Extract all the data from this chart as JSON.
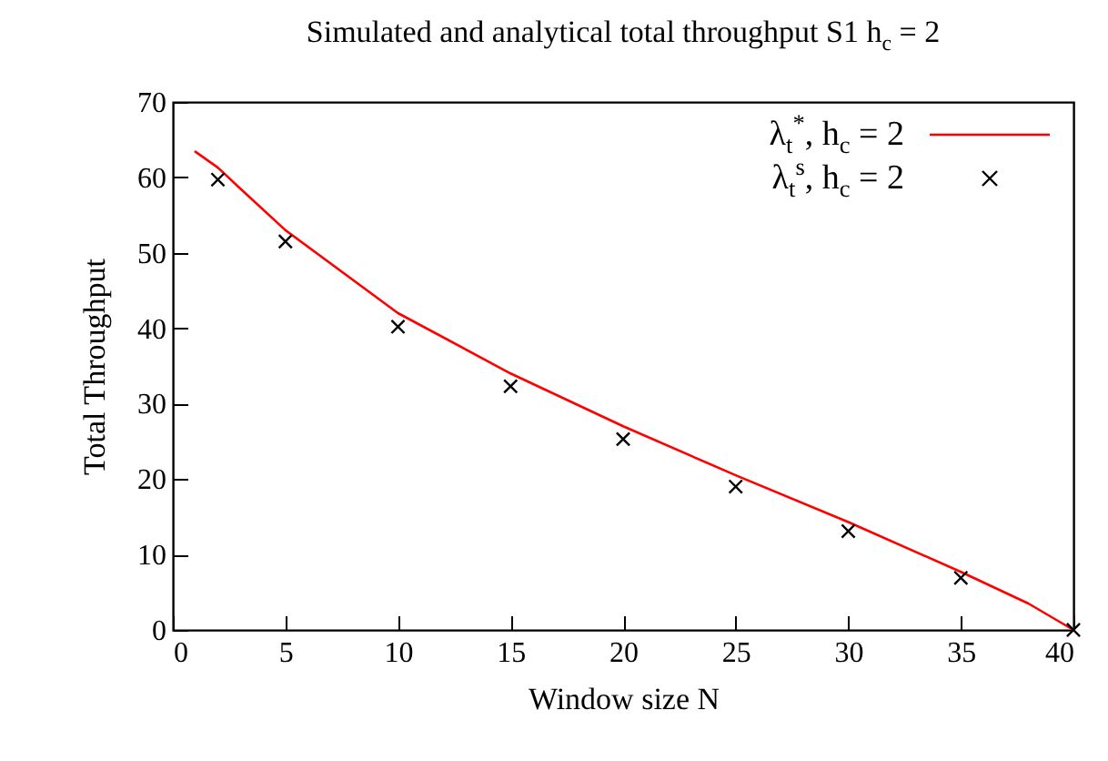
{
  "chart_data": {
    "type": "line",
    "title": "Simulated and analytical total throughput S1 h$_{c}$ = 2",
    "xlabel": "Window size N",
    "ylabel": "Total Throughput",
    "xlim": [
      0,
      40
    ],
    "ylim": [
      0,
      70
    ],
    "xticks": [
      0,
      5,
      10,
      15,
      20,
      25,
      30,
      35,
      40
    ],
    "yticks": [
      0,
      10,
      20,
      30,
      40,
      50,
      60,
      70
    ],
    "grid": false,
    "legend": "top right",
    "series": [
      {
        "name": "λ$_{t}$$^{*}$, h$_{c}$ = 2",
        "color": "#ff0000",
        "line_style": "solid",
        "x": [
          1,
          2,
          3,
          5,
          10,
          15,
          20,
          25,
          30,
          35,
          38,
          40
        ],
        "values": [
          63.4,
          61.3,
          58.5,
          53,
          42,
          34,
          27,
          20.5,
          14.3,
          7.7,
          3.5,
          0
        ]
      },
      {
        "name": "λ$_{t}$$^{s}$, h$_{c}$ = 2",
        "type": "scatter",
        "color": "#000000",
        "marker": "cross",
        "x": [
          2,
          5,
          10,
          15,
          20,
          25,
          30,
          35,
          40
        ],
        "values": [
          59.7,
          51.5,
          40.2,
          32.3,
          25.3,
          19,
          13.1,
          6.9,
          0
        ]
      }
    ]
  }
}
